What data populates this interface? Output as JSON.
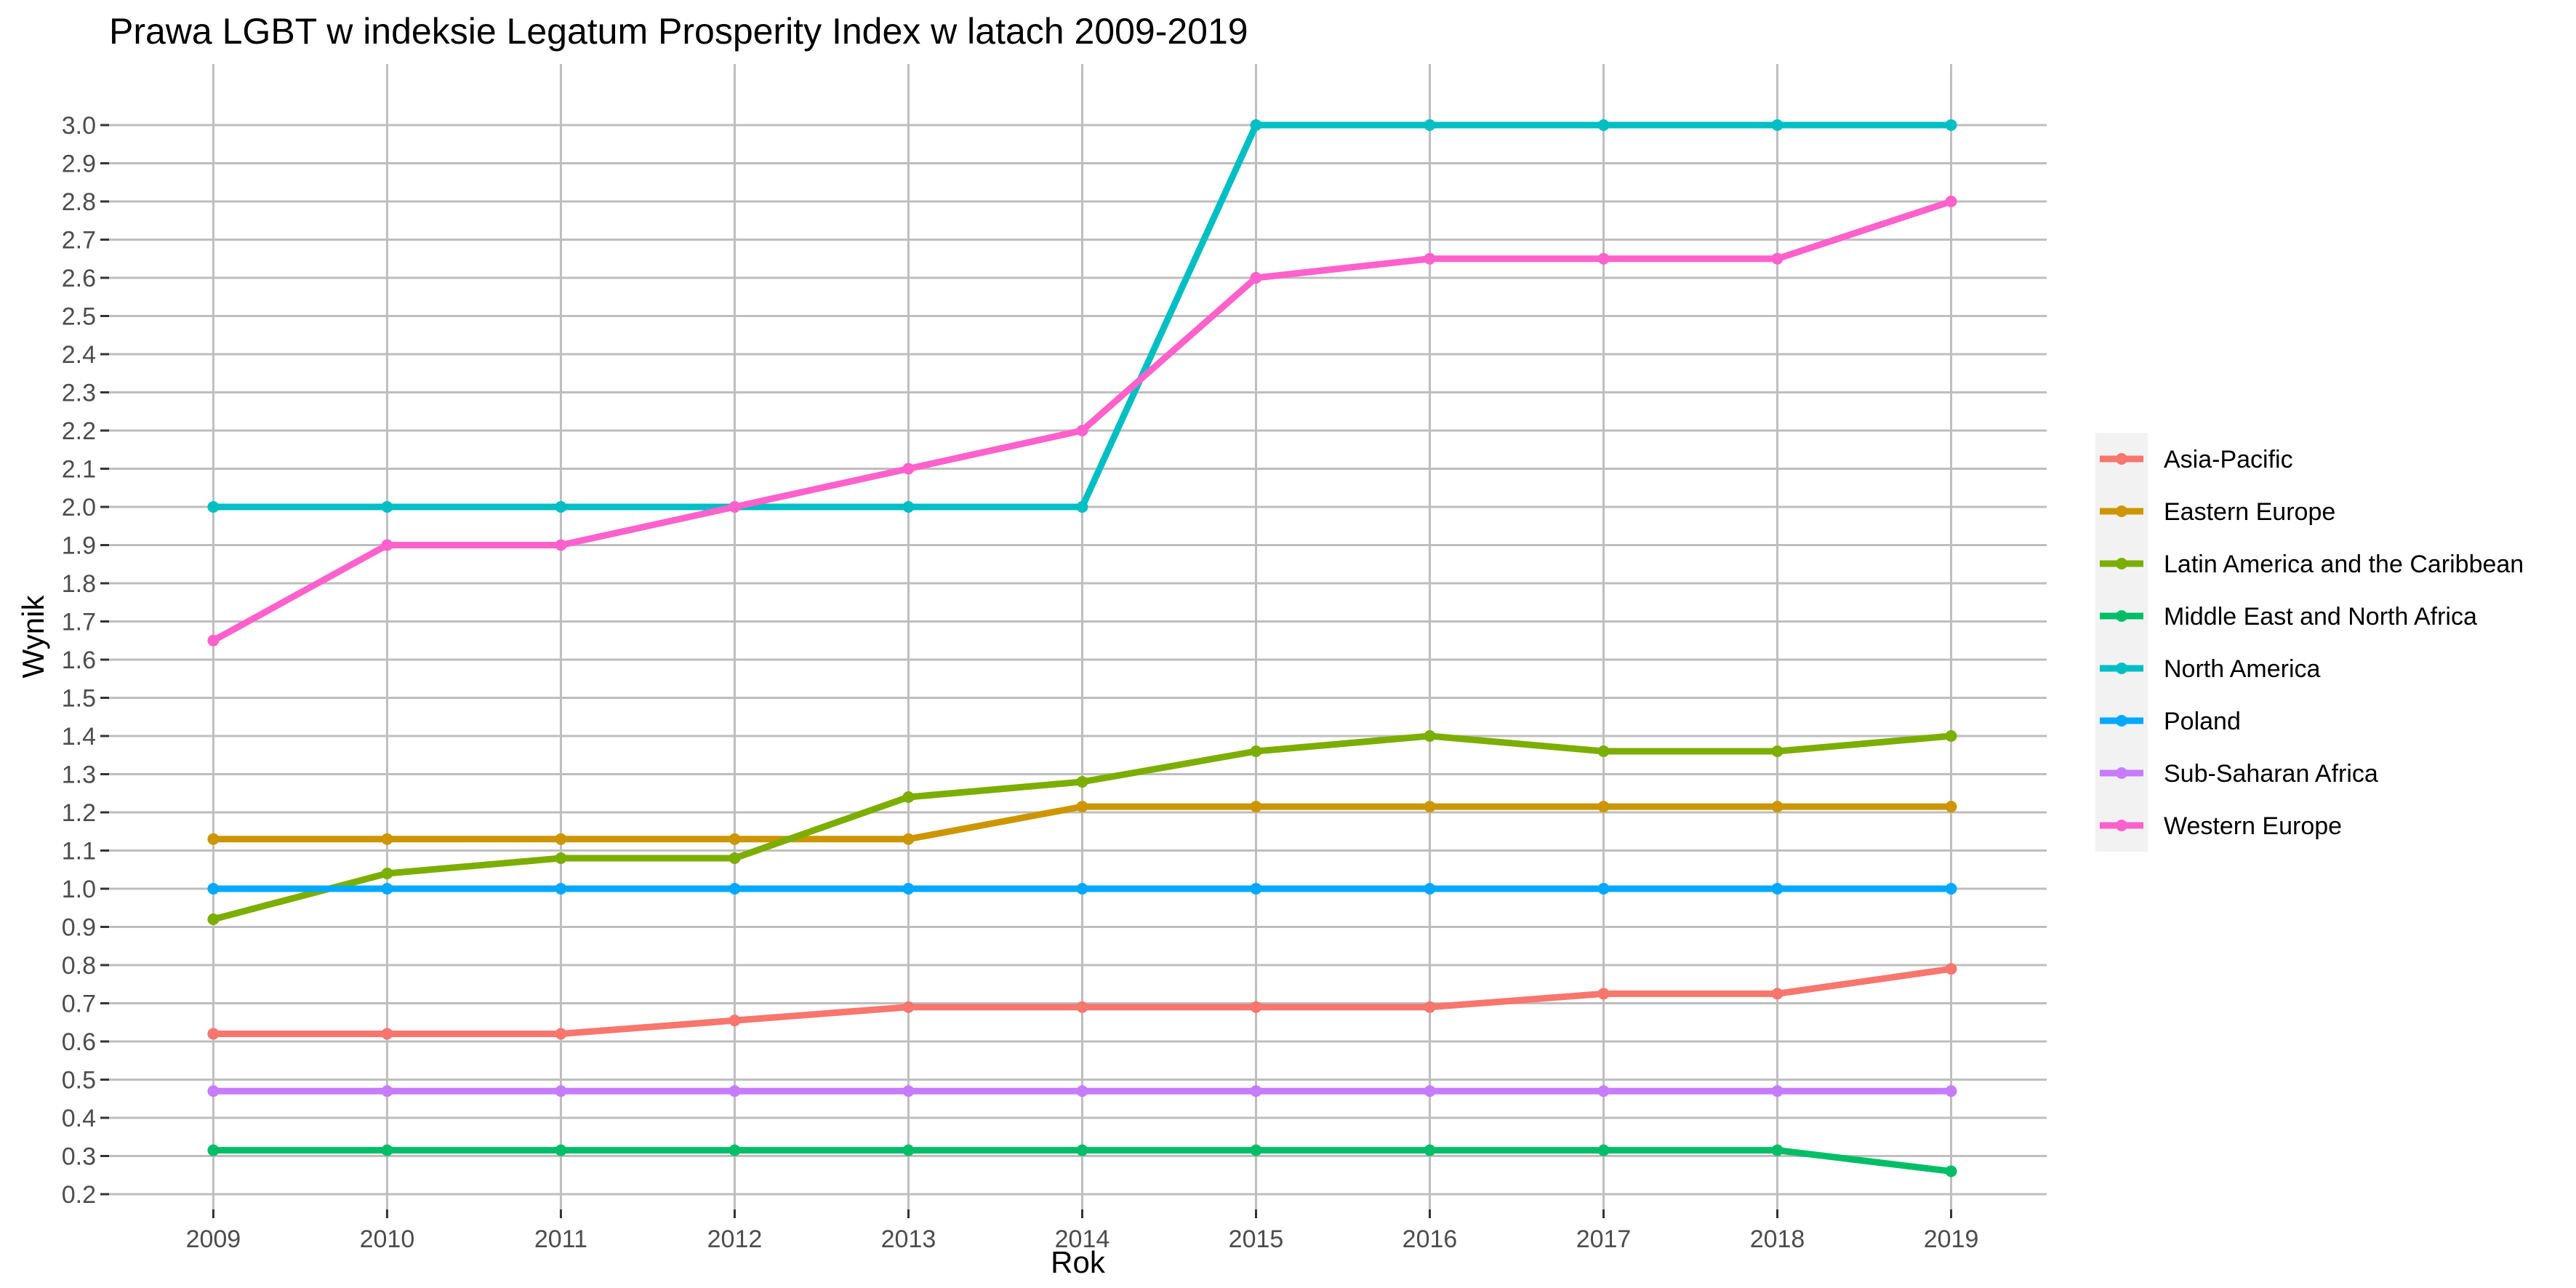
{
  "chart_data": {
    "type": "line",
    "title": "Prawa LGBT w indeksie Legatum Prosperity Index w latach 2009-2019",
    "xlabel": "Rok",
    "ylabel": "Wynik",
    "x": [
      2009,
      2010,
      2011,
      2012,
      2013,
      2014,
      2015,
      2016,
      2017,
      2018,
      2019
    ],
    "x_tick_labels": [
      "2009",
      "2010",
      "2011",
      "2012",
      "2013",
      "2014",
      "2015",
      "2016",
      "2017",
      "2018",
      "2019"
    ],
    "y_tick_labels": [
      "0.2",
      "0.3",
      "0.4",
      "0.5",
      "0.6",
      "0.7",
      "0.8",
      "0.9",
      "1.0",
      "1.1",
      "1.2",
      "1.3",
      "1.4",
      "1.5",
      "1.6",
      "1.7",
      "1.8",
      "1.9",
      "2.0",
      "2.1",
      "2.2",
      "2.3",
      "2.4",
      "2.5",
      "2.6",
      "2.7",
      "2.8",
      "2.9",
      "3.0"
    ],
    "xlim": [
      2008.4,
      2019.55
    ],
    "ylim": [
      0.16,
      3.16
    ],
    "grid": true,
    "legend_position": "right",
    "series": [
      {
        "name": "Asia-Pacific",
        "color": "#F8766D",
        "values": [
          0.62,
          0.62,
          0.62,
          0.655,
          0.69,
          0.69,
          0.69,
          0.69,
          0.725,
          0.725,
          0.79
        ]
      },
      {
        "name": "Eastern Europe",
        "color": "#CD9600",
        "values": [
          1.13,
          1.13,
          1.13,
          1.13,
          1.13,
          1.215,
          1.215,
          1.215,
          1.215,
          1.215,
          1.215
        ]
      },
      {
        "name": "Latin America and the Caribbean",
        "color": "#7CAE00",
        "values": [
          0.92,
          1.04,
          1.08,
          1.08,
          1.24,
          1.28,
          1.36,
          1.4,
          1.36,
          1.36,
          1.4
        ]
      },
      {
        "name": "Middle East and North Africa",
        "color": "#00BE67",
        "values": [
          0.315,
          0.315,
          0.315,
          0.315,
          0.315,
          0.315,
          0.315,
          0.315,
          0.315,
          0.315,
          0.26
        ]
      },
      {
        "name": "North America",
        "color": "#00BFC4",
        "values": [
          2.0,
          2.0,
          2.0,
          2.0,
          2.0,
          2.0,
          3.0,
          3.0,
          3.0,
          3.0,
          3.0
        ]
      },
      {
        "name": "Poland",
        "color": "#00A9FF",
        "values": [
          1.0,
          1.0,
          1.0,
          1.0,
          1.0,
          1.0,
          1.0,
          1.0,
          1.0,
          1.0,
          1.0
        ]
      },
      {
        "name": "Sub-Saharan Africa",
        "color": "#C77CFF",
        "values": [
          0.47,
          0.47,
          0.47,
          0.47,
          0.47,
          0.47,
          0.47,
          0.47,
          0.47,
          0.47,
          0.47
        ]
      },
      {
        "name": "Western Europe",
        "color": "#FF61CC",
        "values": [
          1.65,
          1.9,
          1.9,
          2.0,
          2.1,
          2.2,
          2.6,
          2.65,
          2.65,
          2.65,
          2.8
        ]
      }
    ],
    "colors": {
      "panel_background": "#ffffff",
      "grid": "#bebebe",
      "legend_key_background": "#f2f2f2"
    }
  }
}
